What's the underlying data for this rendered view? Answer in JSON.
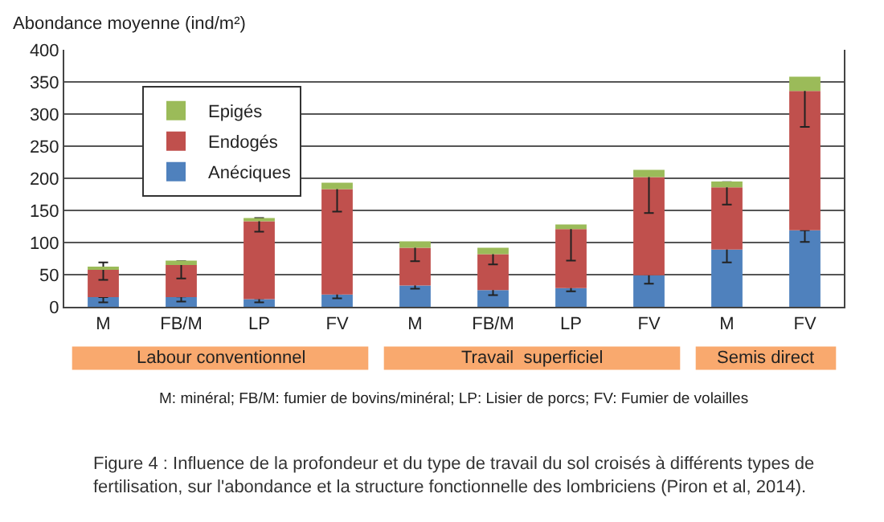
{
  "chart_data": {
    "type": "bar",
    "stacked": true,
    "ylabel": "Abondance moyenne (ind/m²)",
    "categories": [
      "M",
      "FB/M",
      "LP",
      "FV",
      "M",
      "FB/M",
      "LP",
      "FV",
      "M",
      "FV"
    ],
    "series": [
      {
        "name": "Anéciques",
        "color": "#4f81bd",
        "values": [
          15,
          15,
          12,
          19,
          33,
          26,
          29,
          49,
          89,
          119
        ],
        "errors": [
          [
            7,
            15
          ],
          [
            8,
            16
          ],
          [
            7,
            13
          ],
          [
            13,
            21
          ],
          [
            28,
            38
          ],
          [
            18,
            30
          ],
          [
            24,
            31
          ],
          [
            36,
            51
          ],
          [
            69,
            92
          ],
          [
            101,
            119
          ]
        ]
      },
      {
        "name": "Endogés",
        "color": "#c0504d",
        "values": [
          43,
          50,
          121,
          164,
          59,
          56,
          92,
          153,
          97,
          217
        ],
        "errors": [
          [
            42,
            69
          ],
          [
            44,
            71
          ],
          [
            117,
            138
          ],
          [
            148,
            189
          ],
          [
            71,
            98
          ],
          [
            66,
            90
          ],
          [
            72,
            125
          ],
          [
            146,
            209
          ],
          [
            159,
            194
          ],
          [
            280,
            342
          ]
        ]
      },
      {
        "name": "Epigés",
        "color": "#9bbb59",
        "values": [
          4,
          7,
          5,
          10,
          10,
          10,
          7,
          11,
          9,
          22
        ]
      }
    ],
    "ylim": [
      0,
      400
    ],
    "yticks": [
      0,
      50,
      100,
      150,
      200,
      250,
      300,
      350,
      400
    ],
    "grid": "y",
    "legend": "top left",
    "annotations": [
      "Labour conventionnel",
      "Travail  superficiel",
      "Semis direct",
      "M: minéral; FB/M: fumier de bovins/minéral; LP: Lisier de porcs; FV: Fumier de volailles",
      "Figure 4 : Influence de la profondeur et du type de travail du sol croisés à différents types de\nfertilisation, sur l'abondance et la structure fonctionnelle des lombriciens (Piron et al, 2014)."
    ]
  }
}
